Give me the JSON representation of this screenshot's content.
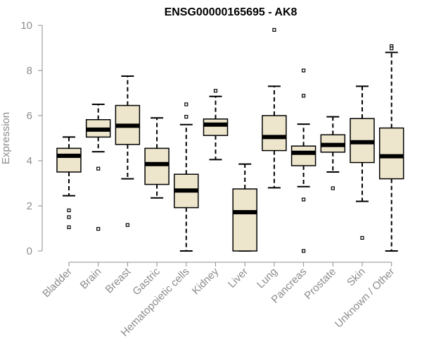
{
  "chart_data": {
    "type": "box",
    "title": "ENSG00000165695 - AK8",
    "xlabel": "",
    "ylabel": "Expression",
    "ylim": [
      0,
      10
    ],
    "yticks": [
      0,
      2,
      4,
      6,
      8,
      10
    ],
    "grid": false,
    "legend": "none",
    "box_fill": "#ede5cc",
    "box_stroke": "#000000",
    "axis_color": "#8c8c8c",
    "categories": [
      "Bladder",
      "Brain",
      "Breast",
      "Gastric",
      "Hematopoietic cells",
      "Kidney",
      "Liver",
      "Lung",
      "Pancreas",
      "Prostate",
      "Skin",
      "Unknown / Other"
    ],
    "boxes": [
      {
        "whisker_low": 2.45,
        "q1": 3.5,
        "median": 4.22,
        "q3": 4.55,
        "whisker_high": 5.05,
        "outliers": [
          1.8,
          1.5,
          1.05
        ]
      },
      {
        "whisker_low": 4.4,
        "q1": 5.05,
        "median": 5.38,
        "q3": 5.82,
        "whisker_high": 6.5,
        "outliers": [
          3.65,
          0.98
        ]
      },
      {
        "whisker_low": 3.2,
        "q1": 4.72,
        "median": 5.55,
        "q3": 6.45,
        "whisker_high": 7.75,
        "outliers": [
          1.15
        ]
      },
      {
        "whisker_low": 2.35,
        "q1": 2.95,
        "median": 3.85,
        "q3": 4.55,
        "whisker_high": 5.9,
        "outliers": []
      },
      {
        "whisker_low": 0.0,
        "q1": 1.92,
        "median": 2.68,
        "q3": 3.4,
        "whisker_high": 5.6,
        "outliers": [
          6.5,
          5.95
        ]
      },
      {
        "whisker_low": 4.05,
        "q1": 5.12,
        "median": 5.6,
        "q3": 5.85,
        "whisker_high": 6.85,
        "outliers": [
          7.1
        ]
      },
      {
        "whisker_low": 0.0,
        "q1": 0.0,
        "median": 1.72,
        "q3": 2.75,
        "whisker_high": 3.85,
        "outliers": []
      },
      {
        "whisker_low": 2.8,
        "q1": 4.45,
        "median": 5.05,
        "q3": 6.0,
        "whisker_high": 7.3,
        "outliers": [
          9.8
        ]
      },
      {
        "whisker_low": 2.85,
        "q1": 3.78,
        "median": 4.35,
        "q3": 4.65,
        "whisker_high": 5.62,
        "outliers": [
          8.0,
          6.88,
          2.28,
          0.0
        ]
      },
      {
        "whisker_low": 3.5,
        "q1": 4.38,
        "median": 4.7,
        "q3": 5.15,
        "whisker_high": 5.95,
        "outliers": [
          2.78
        ]
      },
      {
        "whisker_low": 2.2,
        "q1": 3.92,
        "median": 4.82,
        "q3": 5.87,
        "whisker_high": 7.3,
        "outliers": [
          0.58
        ]
      },
      {
        "whisker_low": 0.0,
        "q1": 3.2,
        "median": 4.2,
        "q3": 5.45,
        "whisker_high": 8.8,
        "outliers": [
          9.08,
          8.98
        ]
      }
    ]
  }
}
